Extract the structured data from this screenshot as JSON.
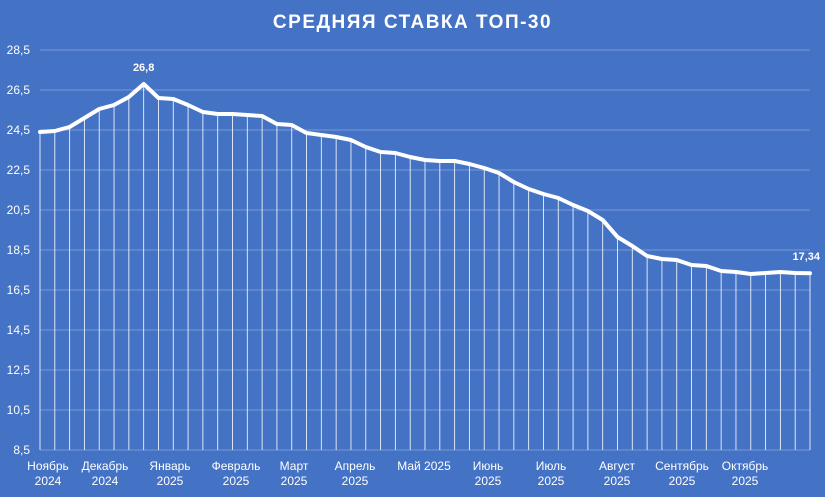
{
  "chart_data": {
    "type": "line",
    "title": "СРЕДНЯЯ СТАВКА ТОП-30",
    "xlabel": "",
    "ylabel": "",
    "ylim": [
      8.5,
      28.5
    ],
    "yticks": [
      "8,5",
      "10,5",
      "12,5",
      "14,5",
      "16,5",
      "18,5",
      "20,5",
      "22,5",
      "24,5",
      "26,5",
      "28,5"
    ],
    "month_labels": [
      {
        "line1": "Ноябрь",
        "line2": "2024"
      },
      {
        "line1": "Декабрь",
        "line2": "2024"
      },
      {
        "line1": "Январь",
        "line2": "2025"
      },
      {
        "line1": "Февраль",
        "line2": "2025"
      },
      {
        "line1": "Март",
        "line2": "2025"
      },
      {
        "line1": "Апрель",
        "line2": "2025"
      },
      {
        "line1": "Май 2025",
        "line2": ""
      },
      {
        "line1": "Июнь",
        "line2": "2025"
      },
      {
        "line1": "Июль",
        "line2": "2025"
      },
      {
        "line1": "Август",
        "line2": "2025"
      },
      {
        "line1": "Сентябрь",
        "line2": "2025"
      },
      {
        "line1": "Октябрь",
        "line2": "2025"
      }
    ],
    "grid": true,
    "line_color": "#FFFFFF",
    "background_color": "#4472C4",
    "series": [
      {
        "values": [
          24.4,
          24.45,
          24.65,
          25.1,
          25.55,
          25.75,
          26.15,
          26.8,
          26.1,
          26.05,
          25.75,
          25.4,
          25.3,
          25.3,
          25.25,
          25.2,
          24.8,
          24.75,
          24.35,
          24.25,
          24.15,
          24.0,
          23.65,
          23.4,
          23.35,
          23.15,
          23.0,
          22.95,
          22.95,
          22.8,
          22.6,
          22.35,
          21.9,
          21.55,
          21.3,
          21.1,
          20.75,
          20.45,
          20.0,
          19.15,
          18.7,
          18.2,
          18.05,
          18.0,
          17.75,
          17.7,
          17.45,
          17.4,
          17.3,
          17.35,
          17.4,
          17.35,
          17.34
        ]
      }
    ],
    "data_labels": [
      {
        "index": 7,
        "text": "26,8"
      },
      {
        "index": 52,
        "text": "17,34"
      }
    ]
  }
}
